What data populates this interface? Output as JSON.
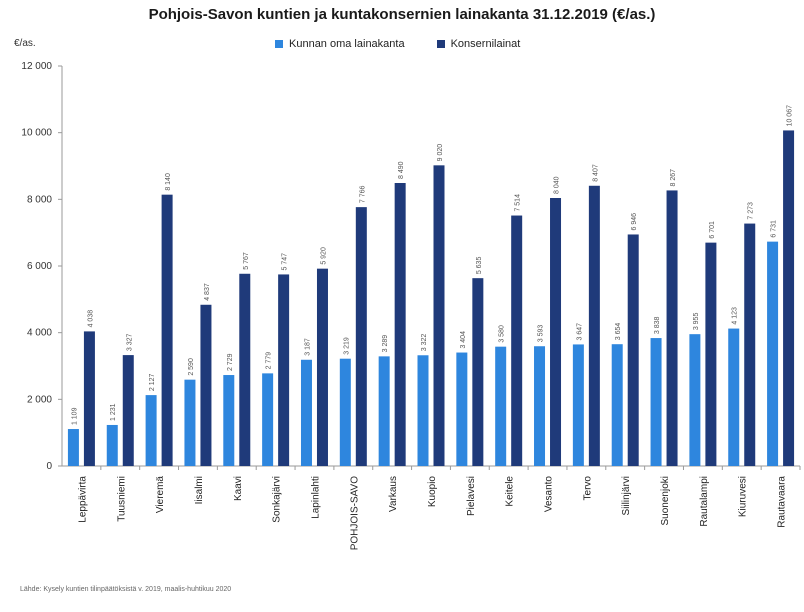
{
  "chart_data": {
    "type": "bar",
    "title": "Pohjois-Savon kuntien ja kuntakonsernien lainakanta 31.12.2019 (€/as.)",
    "ylabel": "€/as.",
    "xlabel": "",
    "ylim": [
      0,
      12000
    ],
    "yticks": [
      0,
      2000,
      4000,
      6000,
      8000,
      10000,
      12000
    ],
    "ytick_labels": [
      "0",
      "2 000",
      "4 000",
      "6 000",
      "8 000",
      "10 000",
      "12 000"
    ],
    "grid": false,
    "legend_position": "top",
    "categories": [
      "Leppävirta",
      "Tuusniemi",
      "Vieremä",
      "Iisalmi",
      "Kaavi",
      "Sonkajärvi",
      "Lapinlahti",
      "POHJOIS-SAVO",
      "Varkaus",
      "Kuopio",
      "Pielavesi",
      "Keitele",
      "Vesanto",
      "Tervo",
      "Siilinjärvi",
      "Suonenjoki",
      "Rautalampi",
      "Kiuruvesi",
      "Rautavaara"
    ],
    "series": [
      {
        "name": "Kunnan oma lainakanta",
        "color": "#2e86de",
        "values": [
          1109,
          1231,
          2127,
          2590,
          2729,
          2779,
          3187,
          3219,
          3289,
          3322,
          3404,
          3580,
          3593,
          3647,
          3654,
          3838,
          3955,
          4123,
          6731
        ],
        "labels": [
          "1 109",
          "1 231",
          "2 127",
          "2 590",
          "2 729",
          "2 779",
          "3 187",
          "3 219",
          "3 289",
          "3 322",
          "3 404",
          "3 580",
          "3 593",
          "3 647",
          "3 654",
          "3 838",
          "3 955",
          "4 123",
          "6 731"
        ]
      },
      {
        "name": "Konsernilainat",
        "color": "#1f3a7a",
        "values": [
          4038,
          3327,
          8140,
          4837,
          5767,
          5747,
          5920,
          7766,
          8490,
          9020,
          5635,
          7514,
          8040,
          8407,
          6946,
          8267,
          6701,
          7273,
          10067
        ],
        "labels": [
          "4 038",
          "3 327",
          "8 140",
          "4 837",
          "5 767",
          "5 747",
          "5 920",
          "7 766",
          "8 490",
          "9 020",
          "5 635",
          "7 514",
          "8 040",
          "8 407",
          "6 946",
          "8 267",
          "6 701",
          "7 273",
          "10 067"
        ]
      }
    ],
    "source_note": "Lähde: Kysely kuntien tilinpäätöksistä v. 2019, maalis-huhtikuu 2020"
  }
}
